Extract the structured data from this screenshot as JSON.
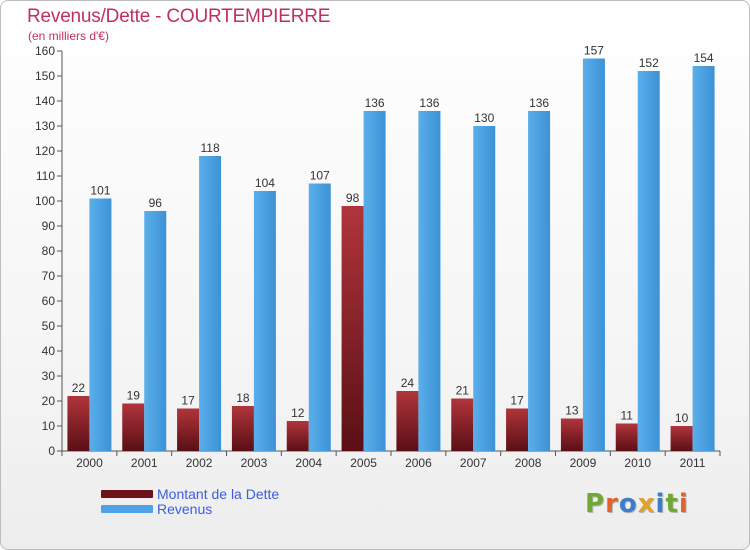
{
  "header": {
    "title": "Revenus/Dette - COURTEMPIERRE",
    "subtitle": "(en milliers d'€)"
  },
  "legend": {
    "debt_label": "Montant de la Dette",
    "revenue_label": "Revenus"
  },
  "logo": {
    "letters": [
      "P",
      "r",
      "o",
      "x",
      "i",
      "t",
      "i"
    ],
    "colors": [
      "#6fa832",
      "#e0632b",
      "#3e7ec9",
      "#e2a12a",
      "#3e7ec9",
      "#6fa832",
      "#e0632b"
    ]
  },
  "colors": {
    "debt": "#7a1a22",
    "debt_light": "#b33a40",
    "revenue": "#4ea3e6",
    "revenue_dark": "#2f7fc4"
  },
  "chart_data": {
    "type": "bar",
    "title": "Revenus/Dette - COURTEMPIERRE",
    "subtitle": "(en milliers d'€)",
    "categories": [
      "2000",
      "2001",
      "2002",
      "2003",
      "2004",
      "2005",
      "2006",
      "2007",
      "2008",
      "2009",
      "2010",
      "2011"
    ],
    "series": [
      {
        "name": "Montant de la Dette",
        "values": [
          22,
          19,
          17,
          18,
          12,
          98,
          24,
          21,
          17,
          13,
          11,
          10
        ]
      },
      {
        "name": "Revenus",
        "values": [
          101,
          96,
          118,
          104,
          107,
          136,
          136,
          130,
          136,
          157,
          152,
          154
        ]
      }
    ],
    "y_ticks": [
      "0",
      "10",
      "20",
      "30",
      "40",
      "50",
      "60",
      "70",
      "80",
      "90",
      "100",
      "110",
      "120",
      "130",
      "140",
      "150",
      "160"
    ],
    "ylim": [
      0,
      160
    ],
    "grid": false,
    "legend_position": "bottom-left"
  }
}
